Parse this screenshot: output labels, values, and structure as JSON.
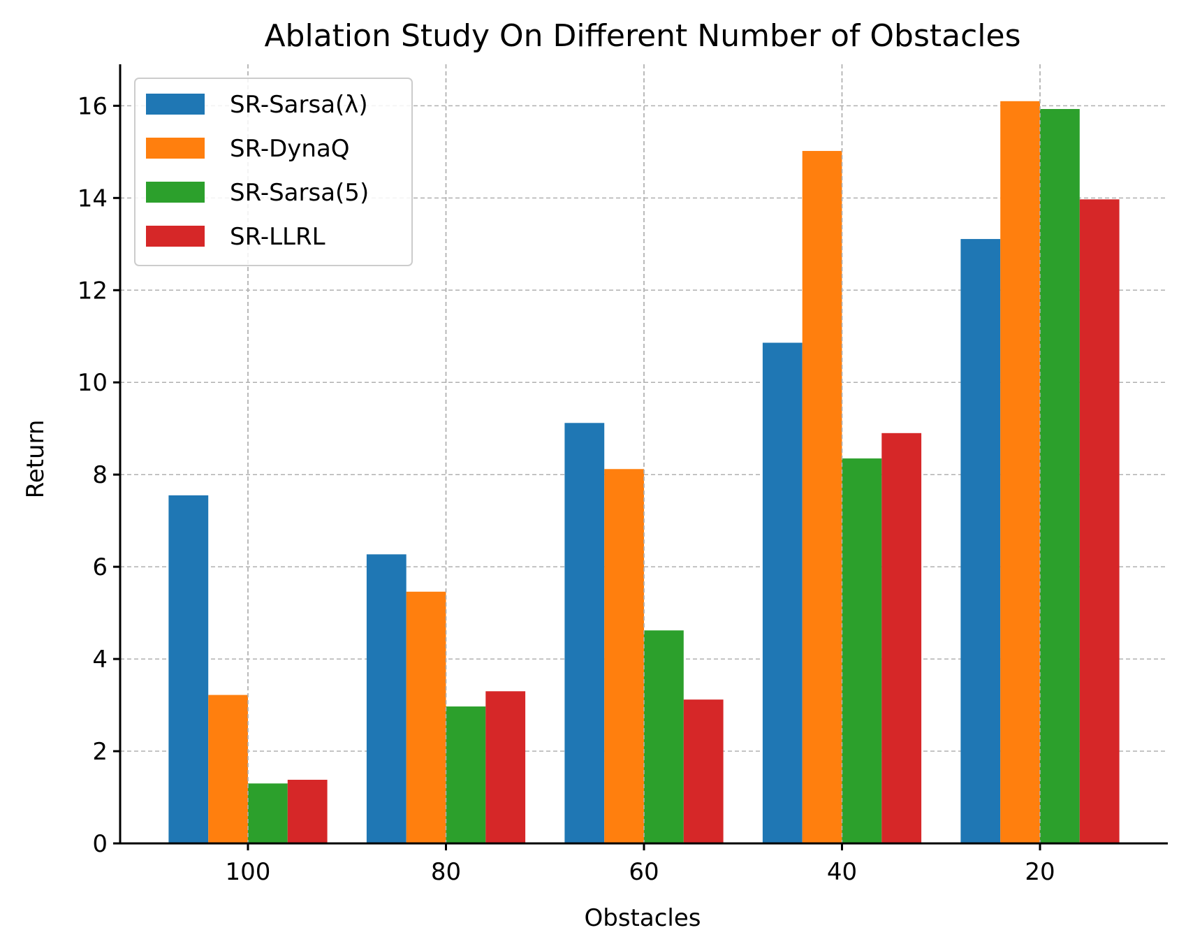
{
  "chart_data": {
    "type": "bar",
    "title": "Ablation Study On Different Number of Obstacles",
    "xlabel": "Obstacles",
    "ylabel": "Return",
    "categories": [
      "100",
      "80",
      "60",
      "40",
      "20"
    ],
    "series": [
      {
        "name": "SR-Sarsa(λ)",
        "color": "#1f77b4",
        "values": [
          7.55,
          6.27,
          9.12,
          10.86,
          13.11
        ]
      },
      {
        "name": "SR-DynaQ",
        "color": "#ff7f0e",
        "values": [
          3.22,
          5.46,
          8.12,
          15.02,
          16.1
        ]
      },
      {
        "name": "SR-Sarsa(5)",
        "color": "#2ca02c",
        "values": [
          1.3,
          2.97,
          4.62,
          8.35,
          15.93
        ]
      },
      {
        "name": "SR-LLRL",
        "color": "#d62728",
        "values": [
          1.38,
          3.3,
          3.12,
          8.9,
          13.97
        ]
      }
    ],
    "ylim": [
      0,
      16.9
    ],
    "yticks": [
      0,
      2,
      4,
      6,
      8,
      10,
      12,
      14,
      16
    ],
    "grid": true,
    "legend": "top-left"
  }
}
